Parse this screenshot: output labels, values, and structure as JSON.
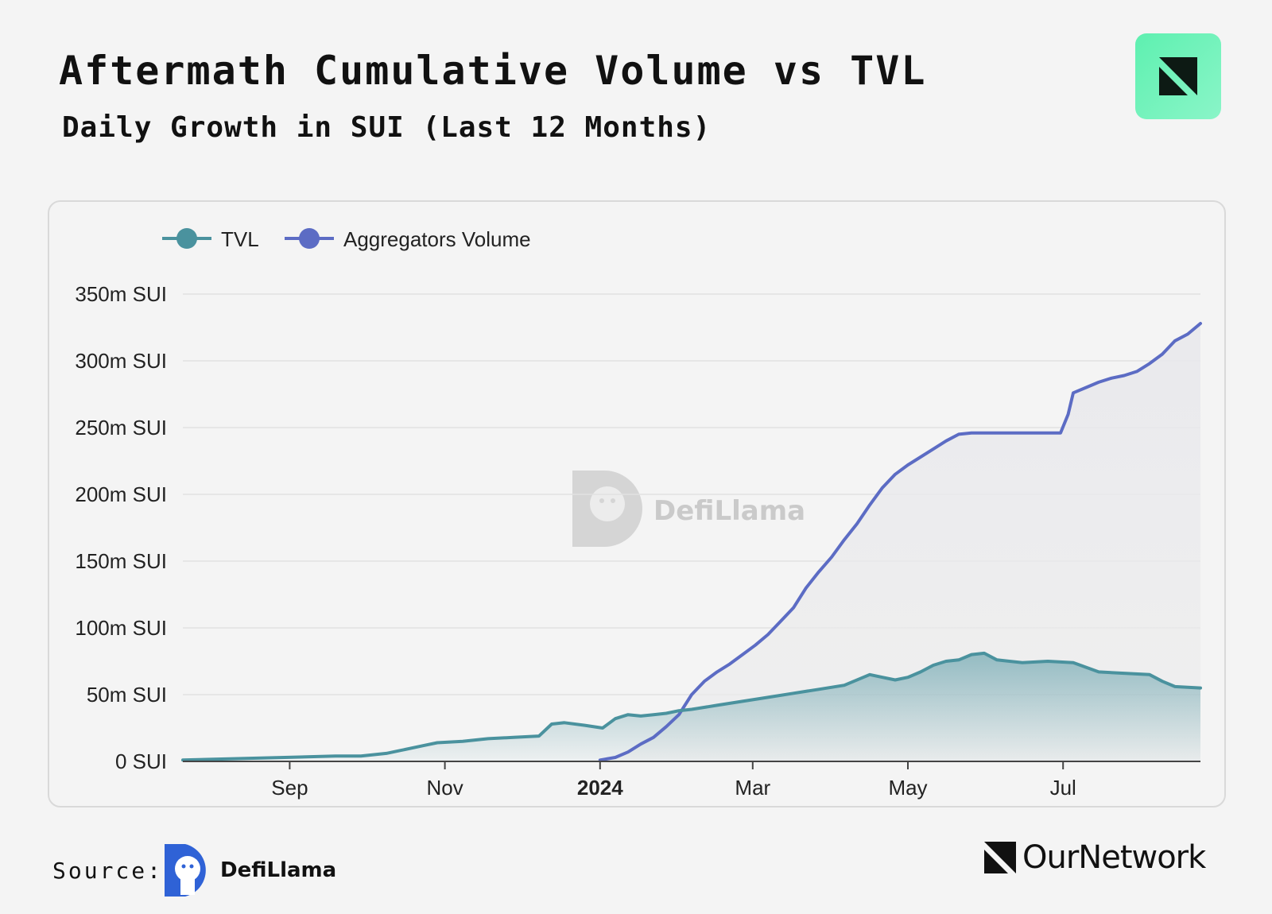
{
  "header": {
    "title": "Aftermath Cumulative Volume vs TVL",
    "subtitle": "Daily Growth in SUI (Last 12 Months)"
  },
  "watermark": {
    "text": "DefiLlama"
  },
  "footer": {
    "source_label": "Source:",
    "source_name": "DefiLlama",
    "brand_name": "OurNetwork"
  },
  "colors": {
    "tvl": "#4a929e",
    "volume": "#5c6cc4",
    "brand_green": "#6ef2b8",
    "defillama_blue": "#2f62d6"
  },
  "chart_data": {
    "type": "line",
    "title": "Aftermath Cumulative Volume vs TVL",
    "subtitle": "Daily Growth in SUI (Last 12 Months)",
    "xlabel": "",
    "ylabel": "",
    "ylim": [
      0,
      350
    ],
    "y_unit": "m SUI",
    "y_ticks": [
      {
        "value": 0,
        "label": "0 SUI"
      },
      {
        "value": 50,
        "label": "50m SUI"
      },
      {
        "value": 100,
        "label": "100m SUI"
      },
      {
        "value": 150,
        "label": "150m SUI"
      },
      {
        "value": 200,
        "label": "200m SUI"
      },
      {
        "value": 250,
        "label": "250m SUI"
      },
      {
        "value": 300,
        "label": "300m SUI"
      },
      {
        "value": 350,
        "label": "350m SUI"
      }
    ],
    "x_range_days": [
      0,
      400
    ],
    "x_ticks": [
      {
        "day": 42,
        "label": "Sep",
        "bold": false
      },
      {
        "day": 103,
        "label": "Nov",
        "bold": false
      },
      {
        "day": 164,
        "label": "2024",
        "bold": true
      },
      {
        "day": 224,
        "label": "Mar",
        "bold": false
      },
      {
        "day": 285,
        "label": "May",
        "bold": false
      },
      {
        "day": 346,
        "label": "Jul",
        "bold": false
      }
    ],
    "legend": [
      "TVL",
      "Aggregators Volume"
    ],
    "legend_position": "top-left",
    "grid": true,
    "series": [
      {
        "name": "TVL",
        "x": [
          0,
          20,
          40,
          60,
          70,
          80,
          85,
          95,
          100,
          110,
          120,
          130,
          140,
          145,
          150,
          158,
          165,
          170,
          175,
          180,
          185,
          190,
          195,
          200,
          210,
          220,
          230,
          240,
          250,
          260,
          270,
          275,
          280,
          285,
          290,
          295,
          300,
          305,
          310,
          315,
          320,
          330,
          340,
          350,
          360,
          370,
          380,
          385,
          390,
          400
        ],
        "values": [
          1,
          2,
          3,
          4,
          4,
          6,
          8,
          12,
          14,
          15,
          17,
          18,
          19,
          28,
          29,
          27,
          25,
          32,
          35,
          34,
          35,
          36,
          38,
          39,
          42,
          45,
          48,
          51,
          54,
          57,
          65,
          63,
          61,
          63,
          67,
          72,
          75,
          76,
          80,
          81,
          76,
          74,
          75,
          74,
          67,
          66,
          65,
          60,
          56,
          55
        ]
      },
      {
        "name": "Aggregators Volume",
        "x": [
          164,
          170,
          175,
          180,
          185,
          190,
          195,
          200,
          205,
          210,
          215,
          220,
          225,
          230,
          235,
          240,
          245,
          250,
          255,
          260,
          265,
          270,
          275,
          280,
          285,
          290,
          295,
          300,
          305,
          310,
          315,
          320,
          325,
          330,
          335,
          340,
          345,
          348,
          350,
          355,
          360,
          365,
          370,
          375,
          380,
          385,
          390,
          395,
          400
        ],
        "values": [
          1,
          3,
          7,
          13,
          18,
          26,
          35,
          50,
          60,
          67,
          73,
          80,
          87,
          95,
          105,
          115,
          130,
          142,
          153,
          166,
          178,
          192,
          205,
          215,
          222,
          228,
          234,
          240,
          245,
          246,
          246,
          246,
          246,
          246,
          246,
          246,
          246,
          260,
          276,
          280,
          284,
          287,
          289,
          292,
          298,
          305,
          315,
          320,
          328
        ]
      }
    ]
  }
}
